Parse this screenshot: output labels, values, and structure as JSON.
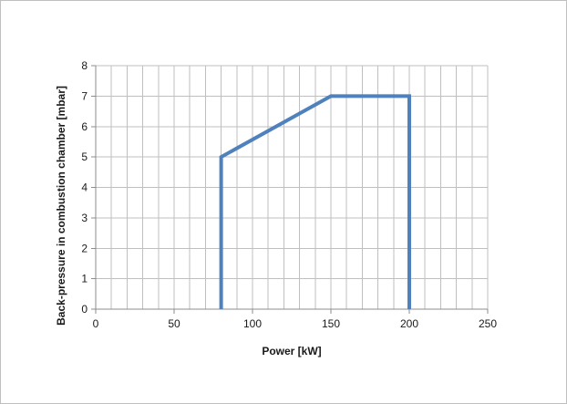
{
  "chart_data": {
    "type": "line",
    "title": "",
    "xlabel": "Power [kW]",
    "ylabel": "Back-pressure in combustion chamber [mbar]",
    "xlim": [
      0,
      250
    ],
    "ylim": [
      0,
      8
    ],
    "x_major_ticks": [
      0,
      50,
      100,
      150,
      200,
      250
    ],
    "y_major_ticks": [
      0,
      1,
      2,
      3,
      4,
      5,
      6,
      7,
      8
    ],
    "x_minor_step": 10,
    "grid": true,
    "legend": "none",
    "series": [
      {
        "color": "#4f81bd",
        "points": [
          [
            80,
            0
          ],
          [
            80,
            5
          ],
          [
            150,
            7
          ],
          [
            200,
            7
          ],
          [
            200,
            0
          ]
        ]
      }
    ]
  }
}
